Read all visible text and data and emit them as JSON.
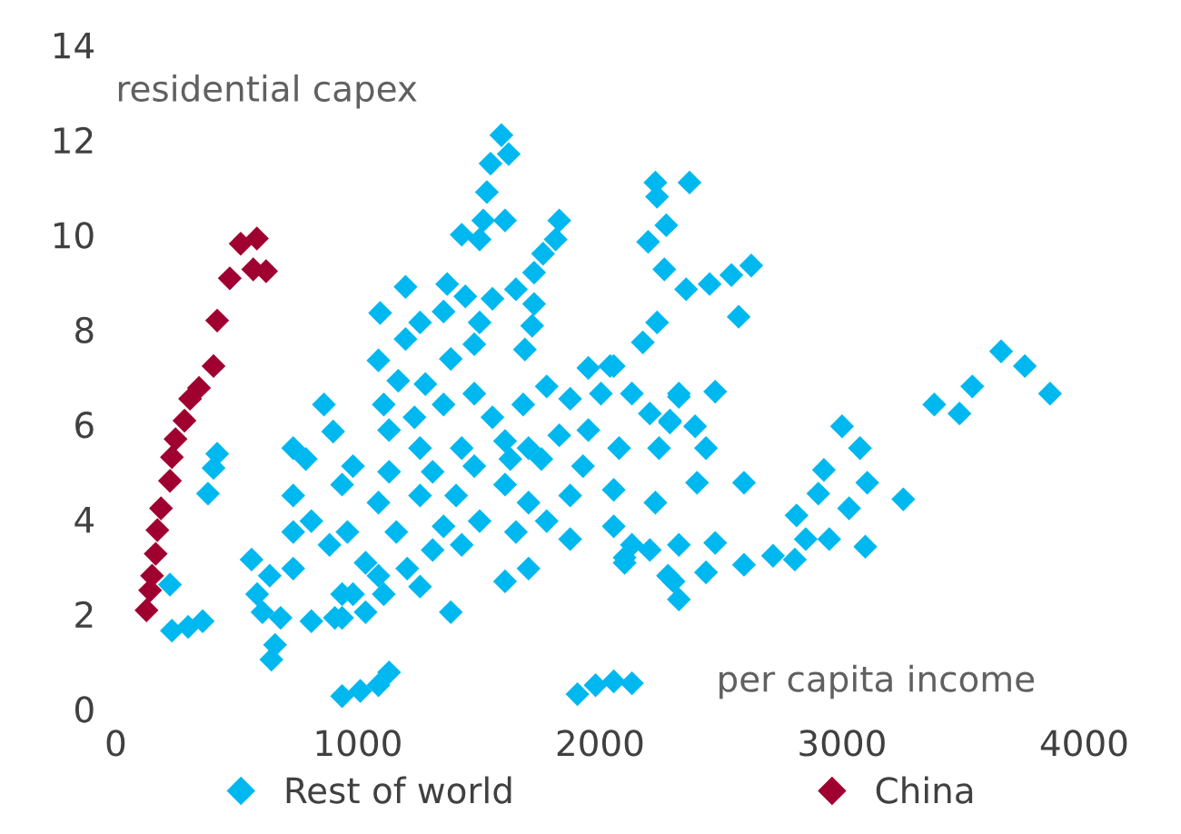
{
  "chart_data": {
    "type": "scatter",
    "xlabel": "per capita income",
    "ylabel": "residential capex",
    "xlim": [
      0,
      4000
    ],
    "ylim": [
      0,
      14
    ],
    "xticks": [
      0,
      1000,
      2000,
      3000,
      4000
    ],
    "yticks": [
      0,
      2,
      4,
      6,
      8,
      10,
      12,
      14
    ],
    "grid": false,
    "legend": "bottom",
    "marker": "diamond",
    "series": [
      {
        "name": "Rest of world",
        "color": "#00b8f0",
        "x": [
          1593,
          1623,
          1548,
          1533,
          1518,
          1608,
          1429,
          1503,
          1832,
          1817,
          1765,
          1728,
          2229,
          2370,
          2236,
          2274,
          2199,
          2266,
          2356,
          2453,
          2543,
          2625,
          2573,
          2236,
          2177,
          1197,
          1369,
          1444,
          1556,
          1653,
          1728,
          1092,
          1257,
          1354,
          1503,
          1720,
          1197,
          1481,
          1690,
          1085,
          1384,
          1952,
          2057,
          2132,
          2326,
          1167,
          1279,
          1107,
          1234,
          1354,
          1481,
          1556,
          1683,
          1780,
          1877,
          2004,
          2206,
          2289,
          1129,
          1257,
          1429,
          1608,
          1705,
          1832,
          1952,
          2079,
          2244,
          980,
          1129,
          1309,
          1481,
          1630,
          1758,
          1930,
          2057,
          2229,
          935,
          1085,
          1257,
          1406,
          1608,
          1705,
          1877,
          957,
          1159,
          1354,
          1503,
          1653,
          1780,
          1877,
          2057,
          2132,
          2206,
          1032,
          1204,
          1309,
          1429,
          1608,
          1705,
          2102,
          2281,
          935,
          1107,
          1257,
          1384,
          905,
          1032,
          1129,
          1085,
          1010,
          935,
          1907,
          1982,
          2057,
          2132,
          860,
          898,
          733,
          785,
          419,
          404,
          381,
          733,
          808,
          733,
          883,
          561,
          636,
          733,
          584,
          681,
          606,
          808,
          935,
          658,
          643,
          224,
          232,
          299,
          359,
          980,
          1085,
          2042,
          2326,
          2476,
          2289,
          2393,
          2438,
          2401,
          2595,
          2102,
          2326,
          2476,
          2304,
          2326,
          2438,
          2595,
          2715,
          2805,
          2850,
          2947,
          2812,
          2902,
          2925,
          3000,
          3074,
          3029,
          3104,
          3096,
          3253,
          3381,
          3485,
          3538,
          3657,
          3755,
          3859
        ],
        "values": [
          12.1,
          11.7,
          11.5,
          10.9,
          10.3,
          10.3,
          10.0,
          9.9,
          10.3,
          9.9,
          9.6,
          9.2,
          11.1,
          11.1,
          10.8,
          10.2,
          9.85,
          9.27,
          8.85,
          8.96,
          9.15,
          9.35,
          8.27,
          8.15,
          7.73,
          8.9,
          8.96,
          8.7,
          8.65,
          8.85,
          8.54,
          8.35,
          8.15,
          8.38,
          8.15,
          8.08,
          7.8,
          7.69,
          7.58,
          7.35,
          7.38,
          7.19,
          7.23,
          6.65,
          6.65,
          6.92,
          6.85,
          6.42,
          6.15,
          6.42,
          6.65,
          6.15,
          6.42,
          6.8,
          6.54,
          6.65,
          6.23,
          6.08,
          5.88,
          5.5,
          5.5,
          5.65,
          5.5,
          5.77,
          5.88,
          5.5,
          5.5,
          5.12,
          5.0,
          5.0,
          5.12,
          5.27,
          5.27,
          5.12,
          4.62,
          4.35,
          4.73,
          4.35,
          4.5,
          4.5,
          4.73,
          4.35,
          4.5,
          3.73,
          3.73,
          3.85,
          3.96,
          3.73,
          3.96,
          3.58,
          3.85,
          3.46,
          3.35,
          3.08,
          2.96,
          3.35,
          3.46,
          2.69,
          2.96,
          3.08,
          2.81,
          2.42,
          2.42,
          2.58,
          2.04,
          1.92,
          2.04,
          0.77,
          0.5,
          0.38,
          0.27,
          0.31,
          0.5,
          0.58,
          0.54,
          6.42,
          5.85,
          5.5,
          5.27,
          5.38,
          5.08,
          4.54,
          4.5,
          3.96,
          3.73,
          3.46,
          3.15,
          2.81,
          2.96,
          2.42,
          1.92,
          2.04,
          1.85,
          1.92,
          1.35,
          1.04,
          2.62,
          1.65,
          1.73,
          1.85,
          2.42,
          2.81,
          7.23,
          6.58,
          6.69,
          6.04,
          5.96,
          5.5,
          4.77,
          4.77,
          3.19,
          3.46,
          3.5,
          2.69,
          2.31,
          2.88,
          3.04,
          3.23,
          3.15,
          3.58,
          3.58,
          4.08,
          4.54,
          5.04,
          5.96,
          5.5,
          4.23,
          4.77,
          3.42,
          4.42,
          6.42,
          6.23,
          6.8,
          7.54,
          7.23,
          6.65
        ]
      },
      {
        "name": "China",
        "color": "#a00030",
        "x": [
          583,
          516,
          471,
          621,
          568,
          419,
          404,
          344,
          307,
          284,
          247,
          232,
          224,
          187,
          172,
          165,
          150,
          142,
          127
        ],
        "values": [
          9.92,
          9.81,
          9.08,
          9.23,
          9.27,
          8.19,
          7.23,
          6.77,
          6.54,
          6.08,
          5.69,
          5.31,
          4.81,
          4.23,
          3.77,
          3.27,
          2.81,
          2.5,
          2.08
        ]
      }
    ]
  }
}
